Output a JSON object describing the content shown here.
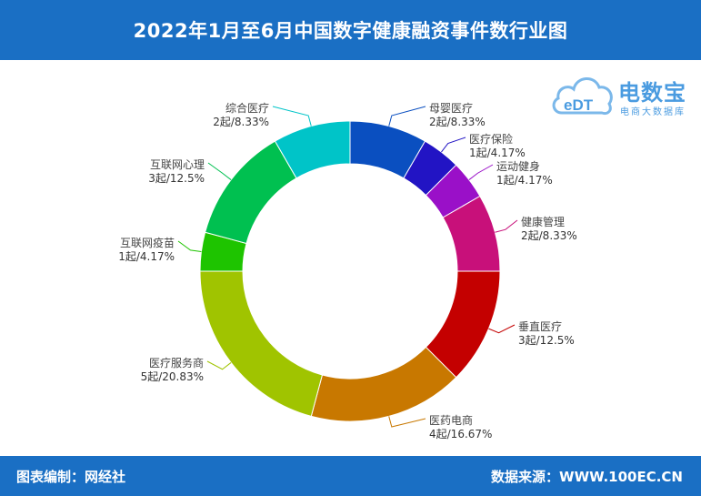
{
  "header": {
    "title": "2022年1月至6月中国数字健康融资事件数行业图"
  },
  "footer": {
    "left": "图表编制：网经社",
    "right": "数据来源：WWW.100EC.CN"
  },
  "logo": {
    "mark": "eDT",
    "brand": "电数宝",
    "sub": "电商大数据库"
  },
  "chart_data": {
    "type": "pie",
    "donut": true,
    "title": "2022年1月至6月中国数字健康融资事件数行业图",
    "unit": "起",
    "slices": [
      {
        "name": "母婴医疗",
        "count": 2,
        "count_label": "2起",
        "percent": "8.33%",
        "color": "#0a4fc0"
      },
      {
        "name": "医疗保险",
        "count": 1,
        "count_label": "1起",
        "percent": "4.17%",
        "color": "#2214c4"
      },
      {
        "name": "运动健身",
        "count": 1,
        "count_label": "1起",
        "percent": "4.17%",
        "color": "#9a10c8"
      },
      {
        "name": "健康管理",
        "count": 2,
        "count_label": "2起",
        "percent": "8.33%",
        "color": "#c8107a"
      },
      {
        "name": "垂直医疗",
        "count": 3,
        "count_label": "3起",
        "percent": "12.5%",
        "color": "#c40000"
      },
      {
        "name": "医药电商",
        "count": 4,
        "count_label": "4起",
        "percent": "16.67%",
        "color": "#c87800"
      },
      {
        "name": "医疗服务商",
        "count": 5,
        "count_label": "5起",
        "percent": "20.83%",
        "color": "#a0c400"
      },
      {
        "name": "互联网疫苗",
        "count": 1,
        "count_label": "1起",
        "percent": "4.17%",
        "color": "#1ec400"
      },
      {
        "name": "互联网心理",
        "count": 3,
        "count_label": "3起",
        "percent": "12.5%",
        "color": "#00c050"
      },
      {
        "name": "综合医疗",
        "count": 2,
        "count_label": "2起",
        "percent": "8.33%",
        "color": "#00c4c8"
      }
    ]
  }
}
